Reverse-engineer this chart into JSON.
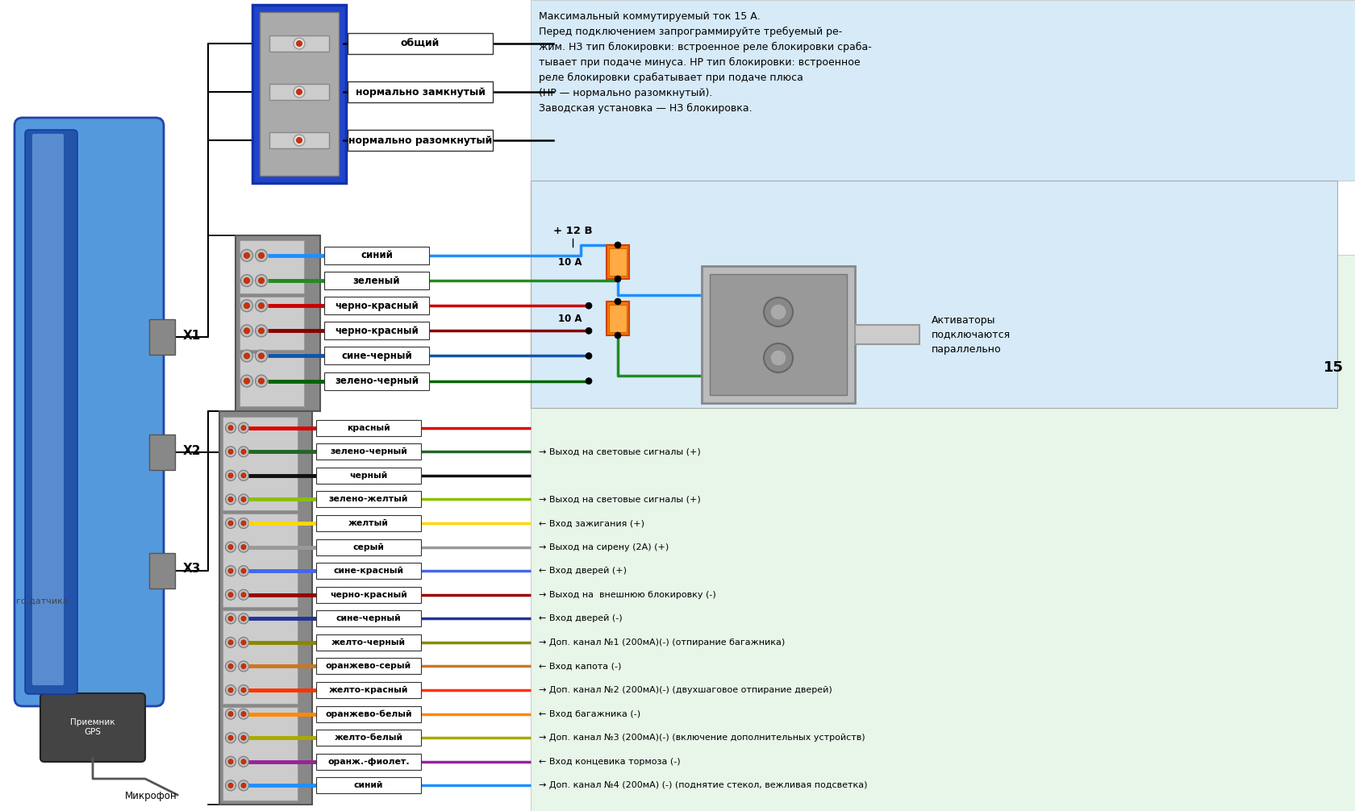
{
  "bg_color": "#ffffff",
  "relay_labels": [
    "общий",
    "нормально замкнутый",
    "нормально разомкнутый"
  ],
  "x2_labels": [
    "синий",
    "зеленый",
    "черно-красный",
    "черно-красный",
    "сине-черный",
    "зелено-черный"
  ],
  "x2_wire_colors": [
    "#1E90FF",
    "#228B22",
    "#cc0000",
    "#880000",
    "#1155AA",
    "#006400"
  ],
  "x3_labels": [
    "красный",
    "зелено-черный",
    "черный",
    "зелено-желтый",
    "желтый",
    "серый",
    "сине-красный",
    "черно-красный",
    "сине-черный",
    "желто-черный",
    "оранжево-серый",
    "желто-красный",
    "оранжево-белый",
    "желто-белый",
    "оранж.-фиолет.",
    "синий"
  ],
  "x3_wire_colors": [
    "#DD0000",
    "#226622",
    "#111111",
    "#8BC000",
    "#FFD700",
    "#999999",
    "#4466EE",
    "#990000",
    "#223399",
    "#888800",
    "#CC7722",
    "#FF3300",
    "#FF8800",
    "#AAAA00",
    "#992299",
    "#1E90FF"
  ],
  "x3_descriptions": [
    "",
    "→ Выход на световые сигналы (+)",
    "",
    "→ Выход на световые сигналы (+)",
    "← Вход зажигания (+)",
    "→ Выход на сирену (2А) (+)",
    "← Вход дверей (+)",
    "→ Выход на  внешнюю блокировку (-)",
    "← Вход дверей (-)",
    "→ Доп. канал №1 (200мА)(-) (отпирание багажника)",
    "← Вход капота (-)",
    "→ Доп. канал №2 (200мА)(-) (двухшаговое отпирание дверей)",
    "← Вход багажника (-)",
    "→ Доп. канал №3 (200мА)(-) (включение дополнительных устройств)",
    "← Вход концевика тормоза (-)",
    "→ Доп. канал №4 (200мА) (-) (поднятие стекол, вежливая подсветка)"
  ],
  "info_lines": [
    "Максимальный коммутируемый ток 15 А.",
    "Перед подключением запрограммируйте требуемый ре-",
    "жим. НЗ тип блокировки: встроенное реле блокировки сраба-",
    "тывает при подаче минуса. НР тип блокировки: встроенное",
    "реле блокировки срабатывает при подаче плюса",
    "(НР — нормально разомкнутый).",
    "Заводская установка — НЗ блокировка."
  ],
  "fuse_label": "10 А",
  "plus12v": "+ 12 В",
  "actuator_text": "Активаторы\nподключаются\nпараллельно",
  "gps_label": "Приемник\nGPS",
  "mic_label": "Микрофон",
  "sensor_label": "го датчика",
  "label_15": "15"
}
